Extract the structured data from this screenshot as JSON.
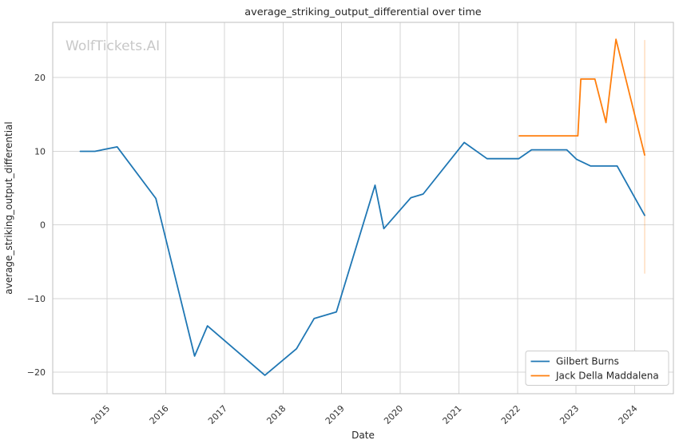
{
  "watermark": {
    "text": "WolfTickets.AI",
    "color": "#c8c8c8"
  },
  "colors": {
    "background": "#ffffff",
    "grid": "#d6d6d6",
    "spine": "#bfbfbf",
    "text": "#333333",
    "series_blue": "#1f77b4",
    "series_orange": "#ff7f0e"
  },
  "chart_data": {
    "type": "line",
    "title": "average_striking_output_differential over time",
    "xlabel": "Date",
    "ylabel": "average_striking_output_differential",
    "xlim": [
      2014.07,
      2024.66
    ],
    "ylim": [
      -22.9,
      27.5
    ],
    "grid": true,
    "legend_position": "lower right",
    "x_ticks": [
      {
        "value": 2015,
        "label": "2015"
      },
      {
        "value": 2016,
        "label": "2016"
      },
      {
        "value": 2017,
        "label": "2017"
      },
      {
        "value": 2018,
        "label": "2018"
      },
      {
        "value": 2019,
        "label": "2019"
      },
      {
        "value": 2020,
        "label": "2020"
      },
      {
        "value": 2021,
        "label": "2021"
      },
      {
        "value": 2022,
        "label": "2022"
      },
      {
        "value": 2023,
        "label": "2023"
      },
      {
        "value": 2024,
        "label": "2024"
      }
    ],
    "y_ticks": [
      {
        "value": -20,
        "label": "−20"
      },
      {
        "value": -10,
        "label": "−10"
      },
      {
        "value": 0,
        "label": "0"
      },
      {
        "value": 10,
        "label": "10"
      },
      {
        "value": 20,
        "label": "20"
      }
    ],
    "series": [
      {
        "name": "Gilbert Burns",
        "color": "#1f77b4",
        "x": [
          2014.54,
          2014.79,
          2015.17,
          2015.83,
          2016.49,
          2016.71,
          2017.69,
          2018.23,
          2018.53,
          2018.91,
          2019.57,
          2019.72,
          2020.18,
          2020.39,
          2021.09,
          2021.48,
          2022.02,
          2022.24,
          2022.84,
          2023.01,
          2023.25,
          2023.7,
          2024.17
        ],
        "y": [
          10.0,
          10.0,
          10.6,
          3.6,
          -17.8,
          -13.7,
          -20.4,
          -16.8,
          -12.7,
          -11.8,
          5.4,
          -0.5,
          3.7,
          4.2,
          11.2,
          9.0,
          9.0,
          10.2,
          10.2,
          8.9,
          8.0,
          8.0,
          1.3
        ]
      },
      {
        "name": "Jack Della Maddalena",
        "color": "#ff7f0e",
        "x": [
          2022.03,
          2023.03,
          2023.08,
          2023.32,
          2023.51,
          2023.68,
          2024.17
        ],
        "y": [
          12.1,
          12.1,
          19.8,
          19.8,
          13.9,
          25.2,
          9.5
        ]
      }
    ],
    "annotations": [
      {
        "type": "vline",
        "x": 2024.17,
        "y_from": -6.6,
        "y_to": 25.1,
        "color": "#ff7f0e",
        "opacity": 0.28
      }
    ]
  }
}
